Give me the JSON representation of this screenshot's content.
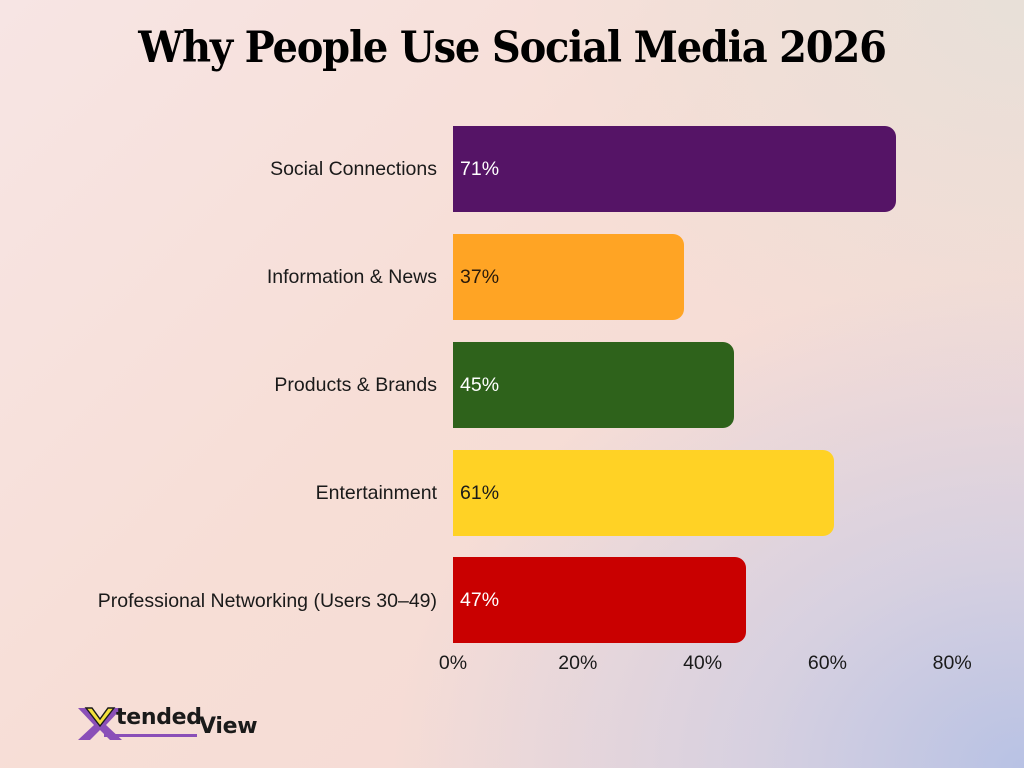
{
  "title": "Why People Use Social Media 2026",
  "chart_data": {
    "type": "bar",
    "orientation": "horizontal",
    "title": "Why People Use Social Media 2026",
    "xlabel": "",
    "ylabel": "",
    "xlim": [
      0,
      80
    ],
    "grid": false,
    "legend": null,
    "categories": [
      "Social Connections",
      "Information & News",
      "Products & Brands",
      "Entertainment",
      "Professional Networking (Users 30–49)"
    ],
    "values": [
      71,
      37,
      45,
      61,
      47
    ],
    "value_labels": [
      "71%",
      "37%",
      "45%",
      "61%",
      "47%"
    ],
    "colors": [
      "#551466",
      "#ffa424",
      "#2e621b",
      "#ffd225",
      "#c90000"
    ],
    "x_ticks": [
      "0%",
      "20%",
      "40%",
      "60%",
      "80%"
    ]
  },
  "bars": [
    {
      "label": "Social Connections",
      "value": 71,
      "value_label": "71%",
      "color": "#551466",
      "text_color": "#ffffff"
    },
    {
      "label": "Information & News",
      "value": 37,
      "value_label": "37%",
      "color": "#ffa424",
      "text_color": "#2a1a0a"
    },
    {
      "label": "Products & Brands",
      "value": 45,
      "value_label": "45%",
      "color": "#2e621b",
      "text_color": "#ffffff"
    },
    {
      "label": "Entertainment",
      "value": 61,
      "value_label": "61%",
      "color": "#ffd225",
      "text_color": "#1a1a1a"
    },
    {
      "label": "Professional Networking (Users 30–49)",
      "value": 47,
      "value_label": "47%",
      "color": "#c90000",
      "text_color": "#ffffff"
    }
  ],
  "axis": {
    "ticks": [
      "0%",
      "20%",
      "40%",
      "60%",
      "80%"
    ],
    "tick_values": [
      0,
      20,
      40,
      60,
      80
    ]
  },
  "logo": {
    "mark": "X",
    "tended": "tended",
    "view": "View",
    "colors": {
      "purple": "#8a4fb8",
      "yellow": "#f4e03a",
      "dark": "#1a1a1a"
    }
  }
}
